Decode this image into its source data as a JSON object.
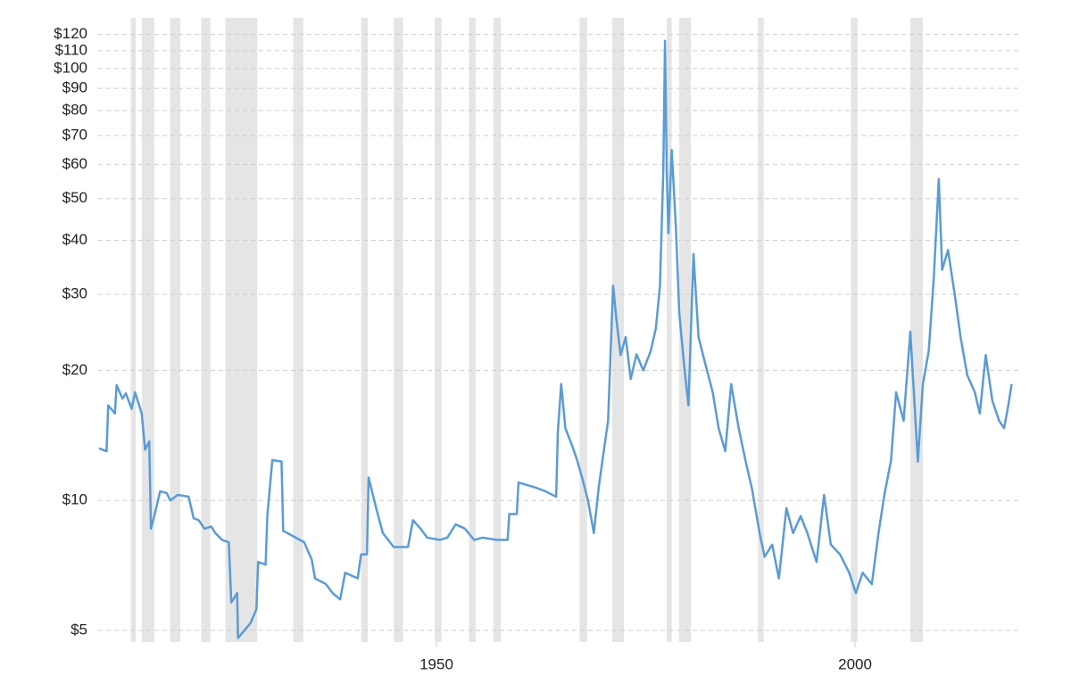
{
  "chart_data": {
    "type": "line",
    "log_scale": true,
    "grid": true,
    "xlim": [
      1909.6,
      2019.5
    ],
    "xticks": [
      1950,
      2000
    ],
    "ylim": [
      4.7,
      125
    ],
    "yticks": [
      {
        "value": 5,
        "label": "$5"
      },
      {
        "value": 10,
        "label": "$10"
      },
      {
        "value": 20,
        "label": "$20"
      },
      {
        "value": 30,
        "label": "$30"
      },
      {
        "value": 40,
        "label": "$40"
      },
      {
        "value": 50,
        "label": "$50"
      },
      {
        "value": 60,
        "label": "$60"
      },
      {
        "value": 70,
        "label": "$70"
      },
      {
        "value": 80,
        "label": "$80"
      },
      {
        "value": 90,
        "label": "$90"
      },
      {
        "value": 100,
        "label": "$100"
      },
      {
        "value": 110,
        "label": "$110"
      },
      {
        "value": 120,
        "label": "$120"
      }
    ],
    "shade_color": "#e5e5e5",
    "shaded_ranges": [
      [
        1913.5,
        1914.1
      ],
      [
        1914.8,
        1916.3
      ],
      [
        1918.2,
        1919.4
      ],
      [
        1921.9,
        1923.0
      ],
      [
        1924.8,
        1928.6
      ],
      [
        1932.9,
        1934.1
      ],
      [
        1941.0,
        1941.8
      ],
      [
        1944.9,
        1946.0
      ],
      [
        1949.8,
        1950.6
      ],
      [
        1953.9,
        1954.7
      ],
      [
        1956.8,
        1957.7
      ],
      [
        1967.1,
        1968.0
      ],
      [
        1971.0,
        1972.4
      ],
      [
        1977.5,
        1978.1
      ],
      [
        1979.0,
        1980.4
      ],
      [
        1988.4,
        1989.1
      ],
      [
        1999.5,
        2000.3
      ],
      [
        2006.6,
        2008.1
      ]
    ],
    "series": [
      {
        "color": "#5b9bd5",
        "x": [
          1909.7,
          1910.6,
          1910.8,
          1911.6,
          1911.8,
          1912.5,
          1912.9,
          1913.6,
          1914,
          1914.8,
          1915.2,
          1915.7,
          1915.9,
          1916.3,
          1917,
          1917.8,
          1918.2,
          1919.1,
          1920.4,
          1921,
          1921.6,
          1922.3,
          1923.1,
          1923.6,
          1924.4,
          1925.2,
          1925.5,
          1926.2,
          1926.3,
          1927.8,
          1928.5,
          1928.7,
          1929.6,
          1929.8,
          1930.4,
          1931.5,
          1931.7,
          1932.7,
          1934.2,
          1935.1,
          1935.5,
          1936.8,
          1937.6,
          1938.5,
          1939.1,
          1940.6,
          1941,
          1941.7,
          1941.9,
          1942.8,
          1943.6,
          1944.9,
          1946.6,
          1947.2,
          1948.1,
          1948.9,
          1950.4,
          1951.3,
          1952.3,
          1953.4,
          1954.5,
          1955.5,
          1957.2,
          1958.5,
          1958.7,
          1959.6,
          1959.8,
          1961.9,
          1963,
          1964.3,
          1964.5,
          1964.9,
          1965.4,
          1966.2,
          1966.8,
          1967.5,
          1968.1,
          1968.8,
          1969.4,
          1970.5,
          1971.1,
          1971.5,
          1972,
          1972.6,
          1973.2,
          1973.9,
          1974.7,
          1975.6,
          1976.2,
          1976.7,
          1977.1,
          1977.3,
          1977.5,
          1977.7,
          1978.1,
          1978.6,
          1979,
          1979.6,
          1980.1,
          1980.7,
          1981.3,
          1982.2,
          1983,
          1983.7,
          1984.5,
          1985.2,
          1986.1,
          1986.9,
          1987.7,
          1988.6,
          1989.2,
          1990.1,
          1990.9,
          1991.8,
          1992.6,
          1993.5,
          1994.3,
          1995.4,
          1996.3,
          1997.1,
          1998.2,
          1999.3,
          2000.1,
          2000.9,
          2002,
          2002.8,
          2003.5,
          2004.3,
          2004.9,
          2005.8,
          2006.6,
          2007.5,
          2008.1,
          2008.8,
          2009.4,
          2010,
          2010.4,
          2011.1,
          2011.9,
          2012.6,
          2013.4,
          2014.3,
          2014.9,
          2015.6,
          2016.4,
          2017.2,
          2017.8,
          2018.3,
          2018.7
        ],
        "values": [
          13.2,
          13.0,
          16.6,
          15.9,
          18.5,
          17.2,
          17.7,
          16.3,
          17.8,
          15.9,
          13.1,
          13.7,
          8.6,
          9.2,
          10.5,
          10.4,
          10.0,
          10.3,
          10.2,
          9.1,
          9.0,
          8.6,
          8.7,
          8.4,
          8.1,
          8.0,
          5.8,
          6.1,
          4.8,
          5.2,
          5.6,
          7.2,
          7.1,
          9.2,
          12.4,
          12.3,
          8.5,
          8.3,
          8.0,
          7.3,
          6.6,
          6.4,
          6.1,
          5.9,
          6.8,
          6.6,
          7.5,
          7.5,
          11.3,
          9.6,
          8.4,
          7.8,
          7.8,
          9.0,
          8.6,
          8.2,
          8.1,
          8.2,
          8.8,
          8.6,
          8.1,
          8.2,
          8.1,
          8.1,
          9.3,
          9.3,
          11.0,
          10.7,
          10.5,
          10.2,
          14.4,
          18.6,
          14.7,
          13.4,
          12.4,
          11.1,
          10.0,
          8.4,
          10.8,
          15.3,
          31.4,
          26.2,
          21.7,
          23.9,
          19.1,
          21.8,
          20.0,
          22.2,
          25.0,
          31.4,
          58.4,
          116,
          58.4,
          41.6,
          64.8,
          42.9,
          27.2,
          20.4,
          16.6,
          37.2,
          23.9,
          20.4,
          17.8,
          14.7,
          13.0,
          18.6,
          14.7,
          12.4,
          10.6,
          8.4,
          7.4,
          7.9,
          6.6,
          9.6,
          8.4,
          9.2,
          8.4,
          7.2,
          10.3,
          7.9,
          7.5,
          6.8,
          6.1,
          6.8,
          6.4,
          8.4,
          10.3,
          12.4,
          17.8,
          15.3,
          24.6,
          12.3,
          18.6,
          22.2,
          32.7,
          55.5,
          34.2,
          38.0,
          30.0,
          23.9,
          19.5,
          17.8,
          15.9,
          21.7,
          17.0,
          15.3,
          14.7,
          16.6,
          18.6
        ]
      }
    ]
  }
}
